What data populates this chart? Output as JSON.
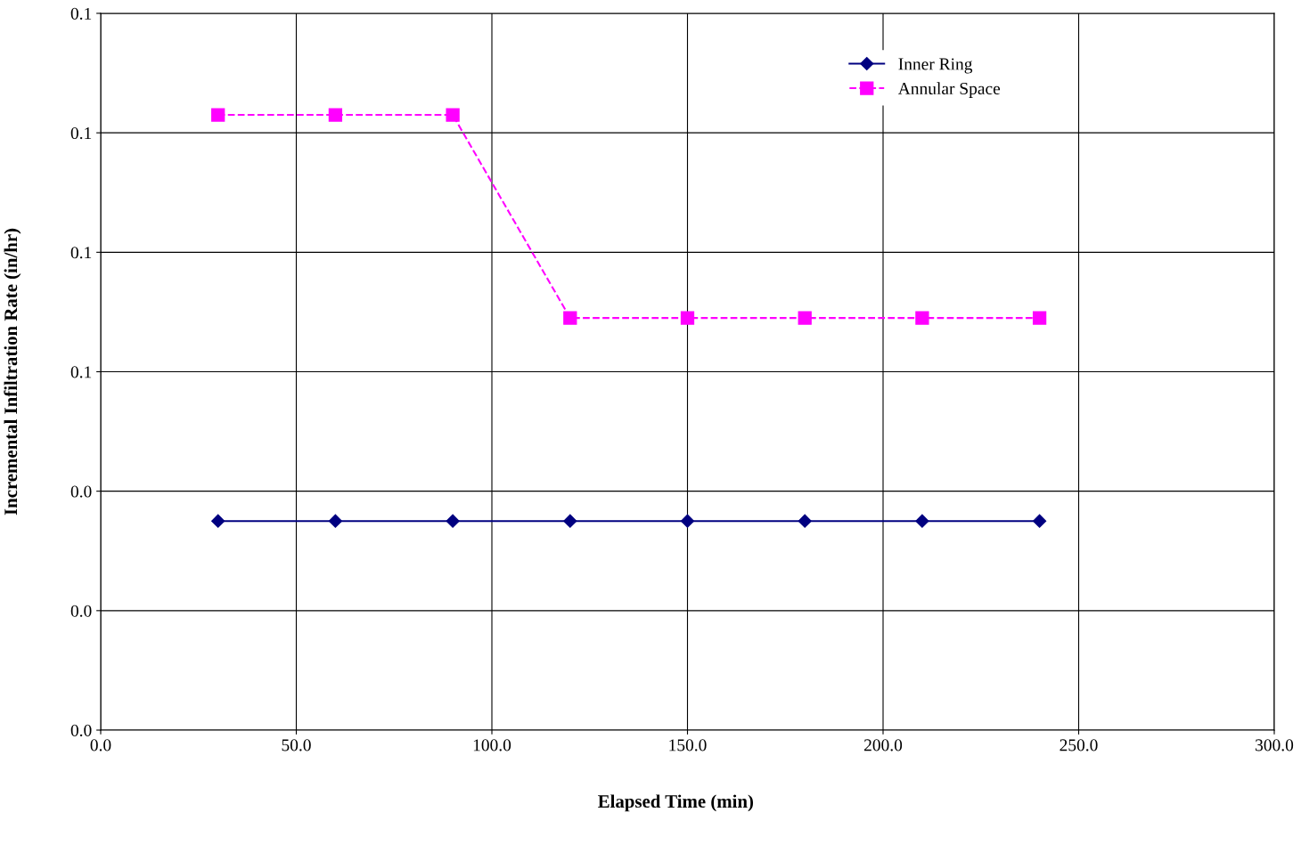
{
  "chart_data": {
    "type": "line",
    "xlabel": "Elapsed Time (min)",
    "ylabel": "Incremental Infiltration Rate (in/hr)",
    "x": [
      30,
      60,
      90,
      120,
      150,
      180,
      210,
      240
    ],
    "series": [
      {
        "name": "Inner Ring",
        "color": "#000080",
        "marker": "diamond",
        "line_style": "solid",
        "values": [
          0.035,
          0.035,
          0.035,
          0.035,
          0.035,
          0.035,
          0.035,
          0.035
        ]
      },
      {
        "name": "Annular Space",
        "color": "#ff00ff",
        "marker": "square",
        "line_style": "dashed",
        "values": [
          0.103,
          0.103,
          0.103,
          0.069,
          0.069,
          0.069,
          0.069,
          0.069
        ]
      }
    ],
    "xlim": [
      0,
      300
    ],
    "xticks": [
      {
        "value": 0,
        "label": "0.0"
      },
      {
        "value": 50,
        "label": "50.0"
      },
      {
        "value": 100,
        "label": "100.0"
      },
      {
        "value": 150,
        "label": "150.0"
      },
      {
        "value": 200,
        "label": "200.0"
      },
      {
        "value": 250,
        "label": "250.0"
      },
      {
        "value": 300,
        "label": "300.0"
      }
    ],
    "ylim": [
      0,
      0.12
    ],
    "yticks": [
      {
        "value": 0,
        "label": "0.0"
      },
      {
        "value": 0.02,
        "label": "0.0"
      },
      {
        "value": 0.04,
        "label": "0.0"
      },
      {
        "value": 0.06,
        "label": "0.1"
      },
      {
        "value": 0.08,
        "label": "0.1"
      },
      {
        "value": 0.1,
        "label": "0.1"
      },
      {
        "value": 0.12,
        "label": "0.1"
      }
    ],
    "grid": true,
    "legend": "top right"
  }
}
